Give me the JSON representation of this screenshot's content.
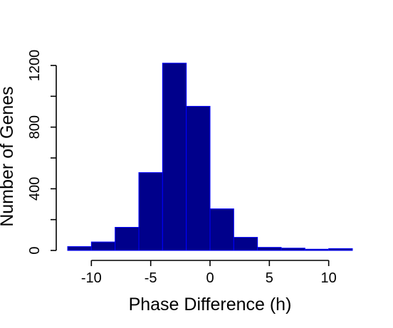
{
  "chart_data": {
    "type": "bar",
    "subtype": "histogram",
    "title": "",
    "xlabel": "Phase Difference (h)",
    "ylabel": "Number of Genes",
    "xlim": [
      -12,
      12
    ],
    "ylim": [
      0,
      1200
    ],
    "x_ticks": [
      -10,
      -5,
      0,
      5,
      10
    ],
    "x_tick_labels": [
      "-10",
      "-5",
      "0",
      "5",
      "10"
    ],
    "y_ticks": [
      0,
      400,
      800,
      1200
    ],
    "y_tick_labels": [
      "0",
      "400",
      "800",
      "1200"
    ],
    "y_minor_ticks": [
      200,
      600,
      1000
    ],
    "bins": [
      {
        "x0": -12,
        "x1": -10,
        "value": 25
      },
      {
        "x0": -10,
        "x1": -8,
        "value": 55
      },
      {
        "x0": -8,
        "x1": -6,
        "value": 150
      },
      {
        "x0": -6,
        "x1": -4,
        "value": 505
      },
      {
        "x0": -4,
        "x1": -2,
        "value": 1215
      },
      {
        "x0": -2,
        "x1": 0,
        "value": 935
      },
      {
        "x0": 0,
        "x1": 2,
        "value": 270
      },
      {
        "x0": 2,
        "x1": 4,
        "value": 85
      },
      {
        "x0": 4,
        "x1": 6,
        "value": 20
      },
      {
        "x0": 6,
        "x1": 8,
        "value": 15
      },
      {
        "x0": 8,
        "x1": 10,
        "value": 8
      },
      {
        "x0": 10,
        "x1": 12,
        "value": 12
      }
    ],
    "bar_fill": "#00008b",
    "bar_stroke": "#0000ff",
    "grid": false,
    "legend": "none"
  }
}
